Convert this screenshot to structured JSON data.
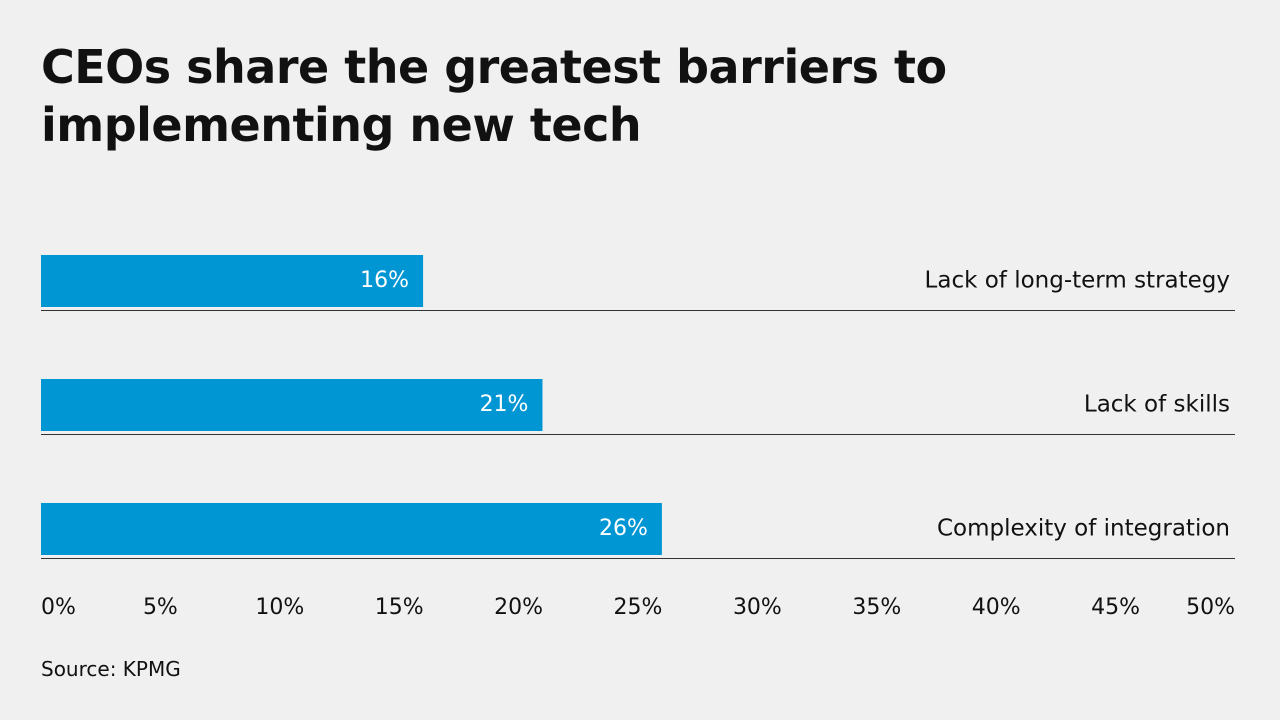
{
  "chart_data": {
    "type": "hbar",
    "title": "CEOs share the greatest barriers to implementing new tech",
    "categories": [
      "Lack of long-term strategy",
      "Lack of skills",
      "Complexity of integration"
    ],
    "values": [
      16,
      21,
      26
    ],
    "value_labels": [
      "16%",
      "21%",
      "26%"
    ],
    "color": "#0095d3",
    "xlim": [
      0,
      50
    ],
    "xticks": [
      {
        "value": 0,
        "label": "0%"
      },
      {
        "value": 5,
        "label": "5%"
      },
      {
        "value": 10,
        "label": "10%"
      },
      {
        "value": 15,
        "label": "15%"
      },
      {
        "value": 20,
        "label": "20%"
      },
      {
        "value": 25,
        "label": "25%"
      },
      {
        "value": 30,
        "label": "30%"
      },
      {
        "value": 35,
        "label": "35%"
      },
      {
        "value": 40,
        "label": "40%"
      },
      {
        "value": 45,
        "label": "45%"
      },
      {
        "value": 50,
        "label": "50%"
      }
    ],
    "grid": false,
    "source": "Source: KPMG"
  }
}
